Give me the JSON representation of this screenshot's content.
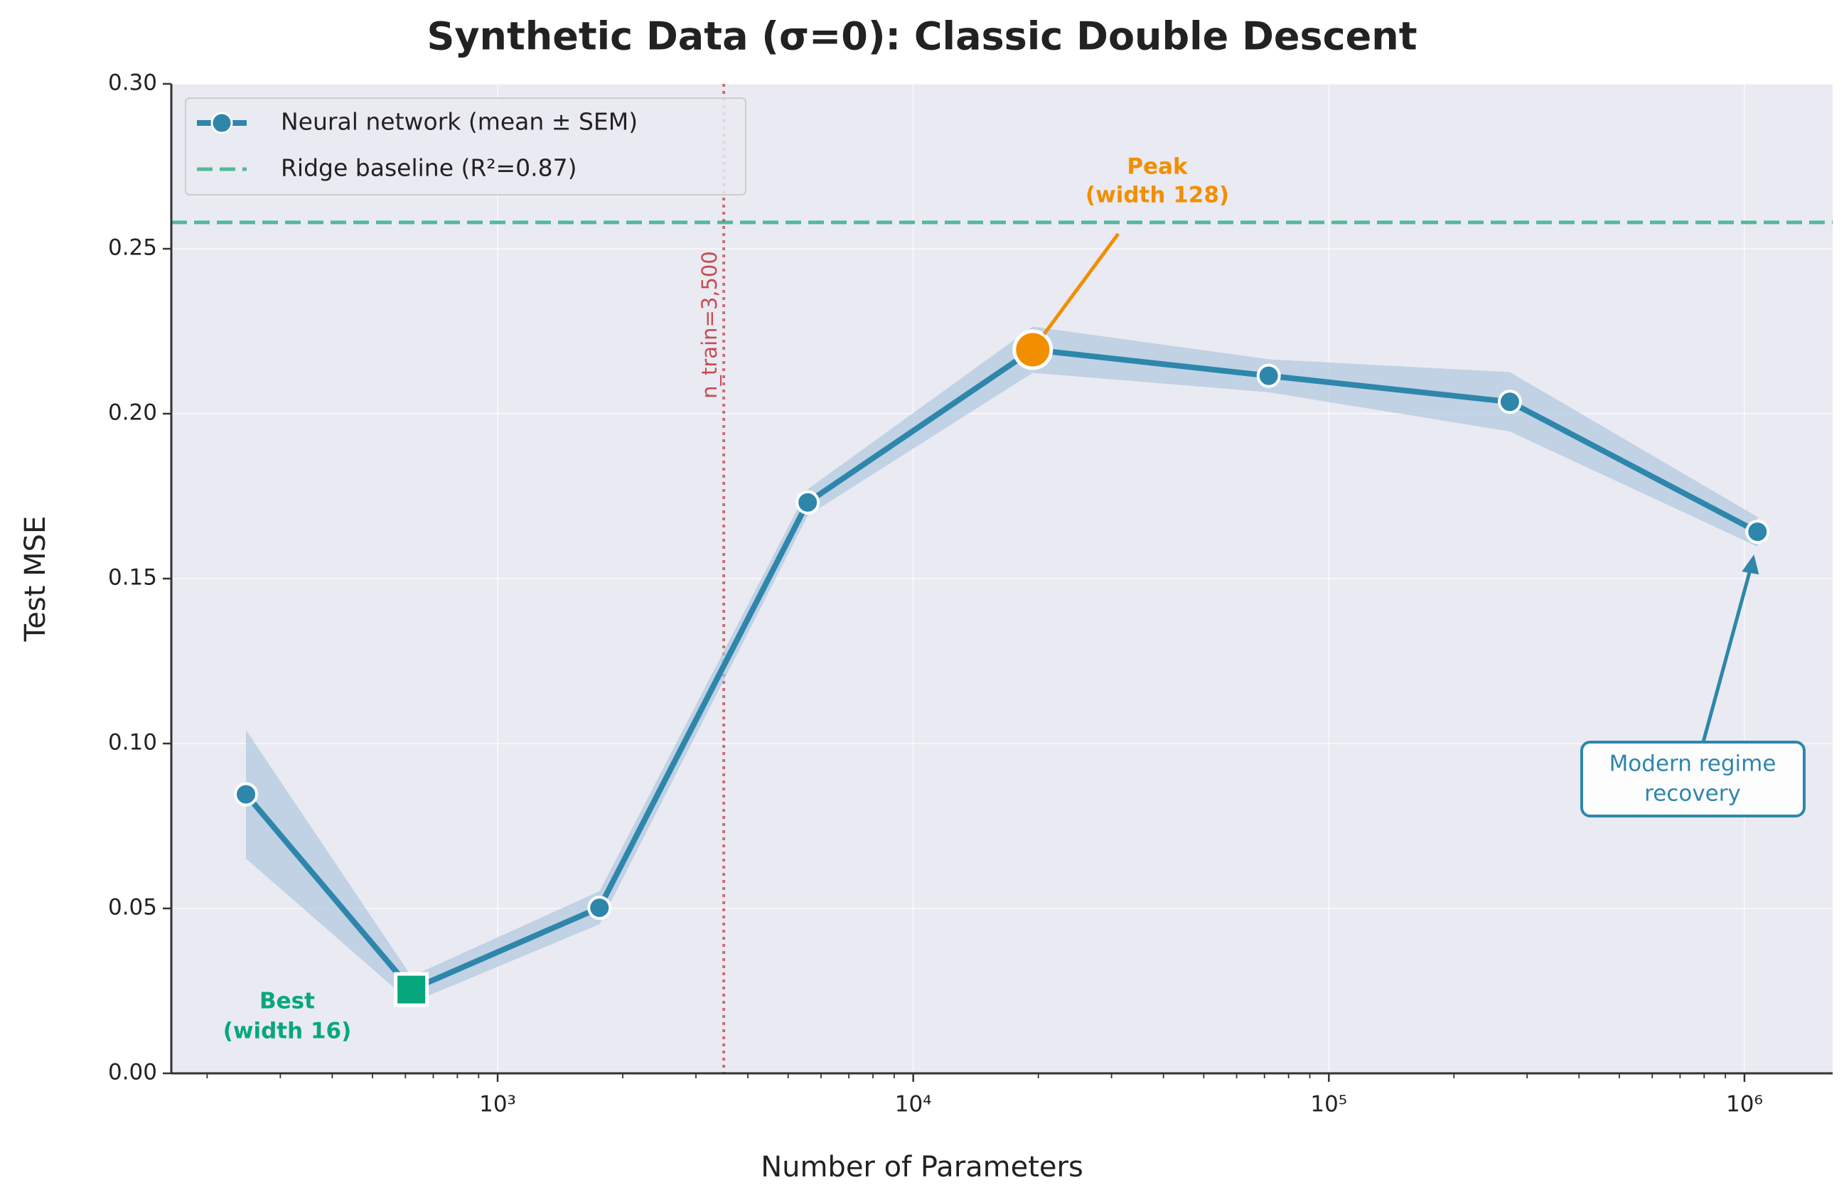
{
  "chart_data": {
    "type": "line",
    "title": "Synthetic Data (σ=0): Classic Double Descent",
    "xlabel": "Number of Parameters",
    "ylabel": "Test MSE",
    "xscale": "log",
    "x": [
      248,
      620,
      1758,
      5572,
      19390,
      71660,
      272600,
      1075000
    ],
    "series": [
      {
        "name": "Neural network (mean ± SEM)",
        "color": "#2e86ab",
        "values": [
          0.0846,
          0.0254,
          0.0502,
          0.1731,
          0.2194,
          0.2115,
          0.2036,
          0.1642
        ],
        "sem": [
          0.0195,
          0.004,
          0.005,
          0.004,
          0.007,
          0.005,
          0.009,
          0.0045
        ]
      }
    ],
    "baseline": {
      "name": "Ridge baseline (R²=0.87)",
      "value": 0.258,
      "color": "#52b99b"
    },
    "vline": {
      "value": 3500,
      "label": "n_train=3,500",
      "color": "#c44e52"
    },
    "annotations": [
      {
        "lines": [
          "Peak",
          "(width 128)"
        ],
        "color": "#f18f01"
      },
      {
        "lines": [
          "Best",
          "(width 16)"
        ],
        "color": "#06a77d"
      },
      {
        "lines": [
          "Modern regime",
          "recovery"
        ],
        "color": "#2e86ab"
      }
    ],
    "xlim": [
      164,
      1630000
    ],
    "xticks": [
      {
        "value": 1000,
        "label": "10³"
      },
      {
        "value": 10000,
        "label": "10⁴"
      },
      {
        "value": 100000,
        "label": "10⁵"
      },
      {
        "value": 1000000,
        "label": "10⁶"
      }
    ],
    "xminorticks": [
      200,
      300,
      400,
      500,
      600,
      700,
      800,
      900,
      2000,
      3000,
      4000,
      5000,
      6000,
      7000,
      8000,
      9000,
      20000,
      30000,
      40000,
      50000,
      60000,
      70000,
      80000,
      90000,
      200000,
      300000,
      400000,
      500000,
      600000,
      700000,
      800000,
      900000
    ],
    "ylim": [
      0,
      0.3
    ],
    "yticks": [
      {
        "value": 0,
        "label": "0.00"
      },
      0.05,
      {
        "value": 0.1,
        "label": "0.10"
      },
      0.15,
      {
        "value": 0.2,
        "label": "0.20"
      },
      0.25,
      {
        "value": 0.3,
        "label": "0.30"
      }
    ],
    "grid": true,
    "legend": "upper left"
  }
}
